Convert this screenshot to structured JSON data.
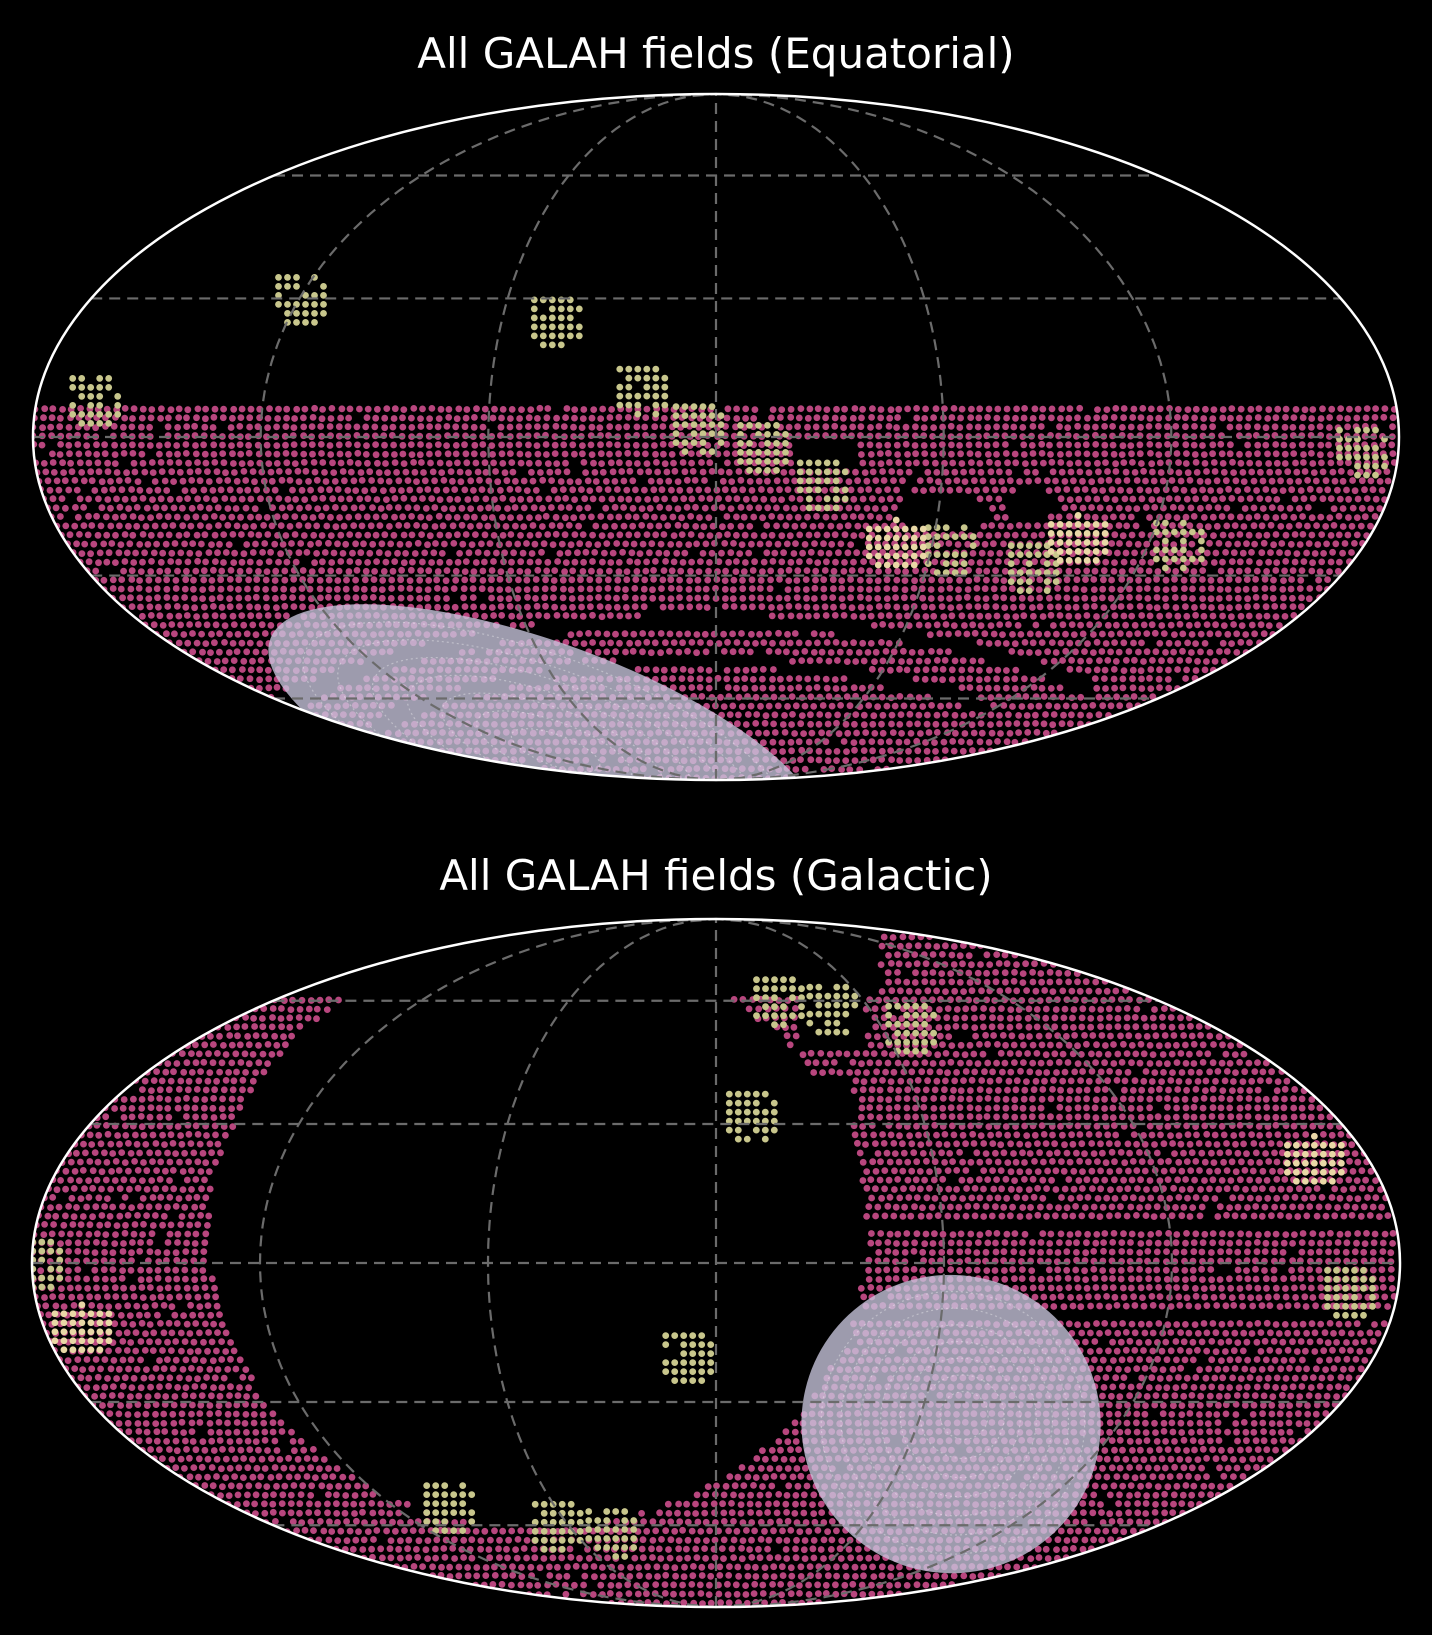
{
  "colors": {
    "background": "#000000",
    "outline": "#ffffff",
    "grid": "#6b6b6b",
    "main_fields": "#b8467e",
    "secondary_fields": "#c8c68c",
    "cream_fields": "#e9d8a6",
    "cloud_fields": "#c9c6de"
  },
  "chart_data": [
    {
      "type": "scatter",
      "projection": "mollweide",
      "title": "All GALAH fields (Equatorial)",
      "xlabel": "",
      "ylabel": "",
      "grid": true,
      "grid_longitudes_deg": [
        -120,
        -60,
        0,
        60,
        120
      ],
      "grid_latitudes_deg": [
        -60,
        -30,
        0,
        30,
        60
      ],
      "series": [
        {
          "color_key": "main_fields",
          "description_regions": [
            {
              "lon_range": [
                -180,
                180
              ],
              "lat_range": [
                -90,
                12
              ]
            }
          ]
        }
      ],
      "secondary_clusters": [
        {
          "lon": 165,
          "lat": 8
        },
        {
          "lon": 120,
          "lat": 30
        },
        {
          "lon": 45,
          "lat": 25
        },
        {
          "lon": 20,
          "lat": 10
        },
        {
          "lon": 5,
          "lat": 2
        },
        {
          "lon": -12,
          "lat": -2
        },
        {
          "lon": -28,
          "lat": -10
        },
        {
          "lon": -65,
          "lat": -24
        },
        {
          "lon": -90,
          "lat": -28
        },
        {
          "lon": -128,
          "lat": -23
        },
        {
          "lon": -170,
          "lat": -3
        }
      ],
      "cream_clusters": [
        {
          "lon": -50,
          "lat": -23
        },
        {
          "lon": -100,
          "lat": -22
        }
      ],
      "cloud_regions": [
        {
          "lon": 95,
          "lat": -72,
          "rx": 55,
          "ry": 18,
          "tilt_deg": 20
        }
      ]
    },
    {
      "type": "scatter",
      "projection": "mollweide",
      "title": "All GALAH fields (Galactic)",
      "xlabel": "",
      "ylabel": "",
      "grid": true,
      "grid_longitudes_deg": [
        -120,
        -60,
        0,
        60,
        120
      ],
      "grid_latitudes_deg": [
        -60,
        -30,
        0,
        30,
        60
      ],
      "series": [
        {
          "color_key": "main_fields",
          "description_regions": []
        }
      ],
      "secondary_clusters": [
        {
          "lon": -25,
          "lat": 60
        },
        {
          "lon": -45,
          "lat": 58
        },
        {
          "lon": -70,
          "lat": 53
        },
        {
          "lon": -10,
          "lat": 32
        },
        {
          "lon": 179,
          "lat": 0
        },
        {
          "lon": 8,
          "lat": -20
        },
        {
          "lon": 100,
          "lat": -55
        },
        {
          "lon": 65,
          "lat": -60
        },
        {
          "lon": 45,
          "lat": -62
        },
        {
          "lon": -167,
          "lat": -6
        }
      ],
      "cream_clusters": [
        {
          "lon": -165,
          "lat": 22
        },
        {
          "lon": 170,
          "lat": -14
        }
      ],
      "cloud_regions": [
        {
          "lon": -70,
          "lat": -35,
          "rx": 28,
          "ry": 28,
          "tilt_deg": -60
        }
      ]
    }
  ]
}
